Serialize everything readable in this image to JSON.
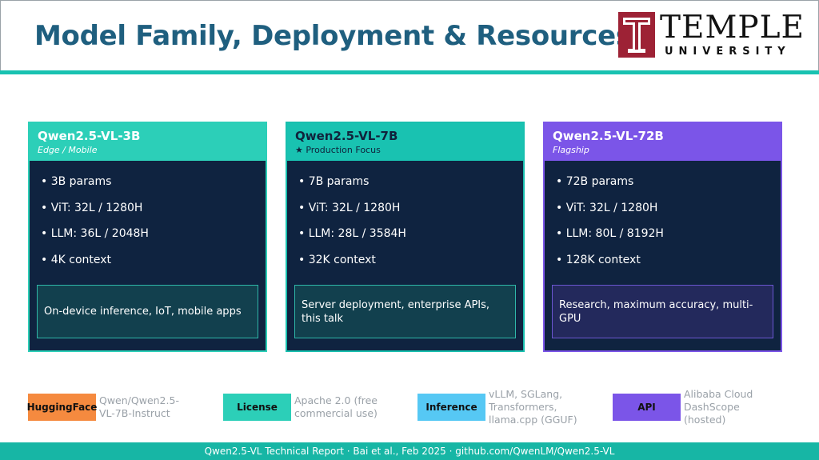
{
  "header": {
    "title": "Model Family, Deployment & Resources",
    "logo": {
      "word": "TEMPLE",
      "sub": "UNIVERSITY",
      "brand_color": "#9d2235"
    }
  },
  "colors": {
    "teal": "#19c2b1",
    "navy": "#0f2340",
    "purple": "#7b55e8",
    "title": "#1f5f7f"
  },
  "cards": [
    {
      "name": "Qwen2.5-VL-3B",
      "tag": "Edge / Mobile",
      "specs": [
        "• 3B params",
        "• ViT: 32L / 1280H",
        "• LLM: 36L / 2048H",
        "• 4K context"
      ],
      "use_case": "On-device inference, IoT, mobile apps"
    },
    {
      "name": "Qwen2.5-VL-7B",
      "tag": "★ Production Focus",
      "specs": [
        "• 7B params",
        "• ViT: 32L / 1280H",
        "• LLM: 28L / 3584H",
        "• 32K context"
      ],
      "use_case": "Server deployment, enterprise APIs, this talk"
    },
    {
      "name": "Qwen2.5-VL-72B",
      "tag": "Flagship",
      "specs": [
        "• 72B params",
        "• ViT: 32L / 1280H",
        "• LLM: 80L / 8192H",
        "• 128K context"
      ],
      "use_case": "Research, maximum accuracy, multi-GPU"
    }
  ],
  "resources": [
    {
      "label": "HuggingFace",
      "text": "Qwen/Qwen2.5-VL-7B-Instruct",
      "color": "#f58a3f"
    },
    {
      "label": "License",
      "text": "Apache 2.0 (free commercial use)",
      "color": "#2ccfb8"
    },
    {
      "label": "Inference",
      "text": "vLLM, SGLang, Transformers, llama.cpp (GGUF)",
      "color": "#56c8f4"
    },
    {
      "label": "API",
      "text": "Alibaba Cloud DashScope (hosted)",
      "color": "#7b55e8"
    }
  ],
  "footer": "Qwen2.5-VL Technical Report · Bai et al., Feb 2025 · github.com/QwenLM/Qwen2.5-VL"
}
